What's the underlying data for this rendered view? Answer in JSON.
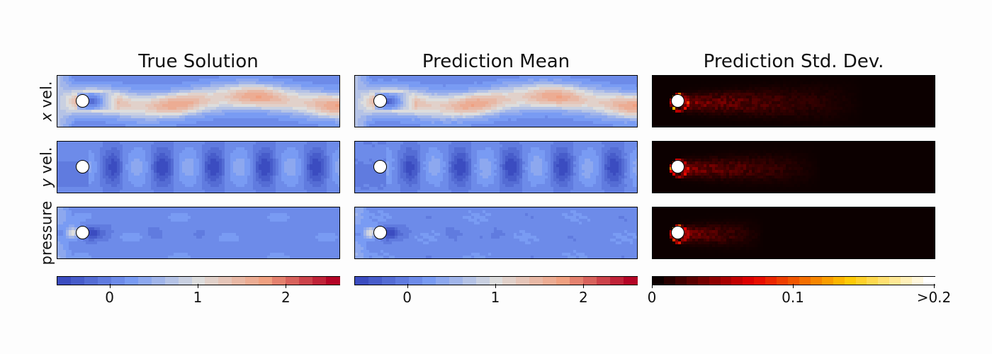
{
  "chart_data": {
    "type": "heatmap",
    "column_titles": [
      "True Solution",
      "Prediction Mean",
      "Prediction Std. Dev."
    ],
    "row_labels": [
      {
        "italic": "x",
        "text": " vel."
      },
      {
        "italic": "y",
        "text": " vel."
      },
      {
        "italic": "",
        "text": "pressure"
      }
    ],
    "value_colorbar": {
      "colormap": "coolwarm",
      "range": [
        -0.6,
        2.6
      ],
      "ticks": [
        "0",
        "1",
        "2"
      ],
      "tick_values": [
        0,
        1,
        2
      ],
      "bands": 21
    },
    "std_colorbar": {
      "colormap": "hot",
      "range": [
        0,
        0.2
      ],
      "ticks": [
        "0",
        "0.1",
        ">0.2"
      ],
      "tick_values": [
        0,
        0.1,
        0.2
      ],
      "bands": 25
    },
    "fields": {
      "x_velocity": "wavy wake, ~1.0-1.5 in stream, negative recirculation behind cylinder",
      "y_velocity": "alternating vortex street, values ~ -0.6 to 0.5",
      "pressure": "high stagnation ~1 ahead of cylinder, low wake ~ -0.5"
    }
  }
}
